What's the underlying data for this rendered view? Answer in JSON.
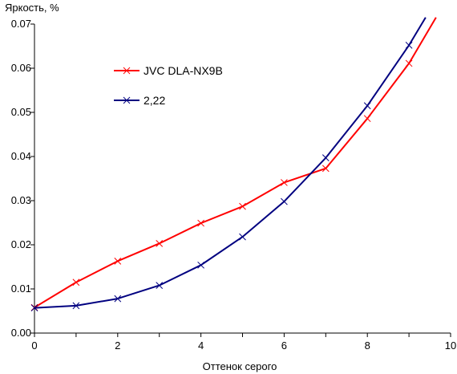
{
  "chart_data": {
    "type": "line",
    "title": "",
    "ylabel": "Яркость, %",
    "xlabel": "Оттенок серого",
    "xlim": [
      0,
      10
    ],
    "ylim": [
      0,
      0.07
    ],
    "x_ticks": [
      "0",
      "2",
      "4",
      "6",
      "8",
      "10"
    ],
    "y_ticks": [
      "0.00",
      "0.01",
      "0.02",
      "0.03",
      "0.04",
      "0.05",
      "0.06",
      "0.07"
    ],
    "grid": false,
    "legend_position": "upper-left-inside",
    "series": [
      {
        "name": "JVC DLA-NX9B",
        "color": "#ff0000",
        "marker": "x",
        "x": [
          0,
          1,
          2,
          3,
          4,
          5,
          6,
          7,
          8,
          9
        ],
        "y": [
          0.0058,
          0.0115,
          0.0163,
          0.0203,
          0.0249,
          0.0287,
          0.0341,
          0.0373,
          0.0486,
          0.0611
        ],
        "line_end": [
          9.65,
          0.0715
        ]
      },
      {
        "name": "2,22",
        "color": "#000080",
        "marker": "x",
        "x": [
          0,
          1,
          2,
          3,
          4,
          5,
          6,
          7,
          8,
          9
        ],
        "y": [
          0.0057,
          0.0062,
          0.0078,
          0.0108,
          0.0154,
          0.0218,
          0.0298,
          0.0397,
          0.0515,
          0.0652
        ],
        "line_end": [
          9.4,
          0.0715
        ]
      }
    ]
  }
}
